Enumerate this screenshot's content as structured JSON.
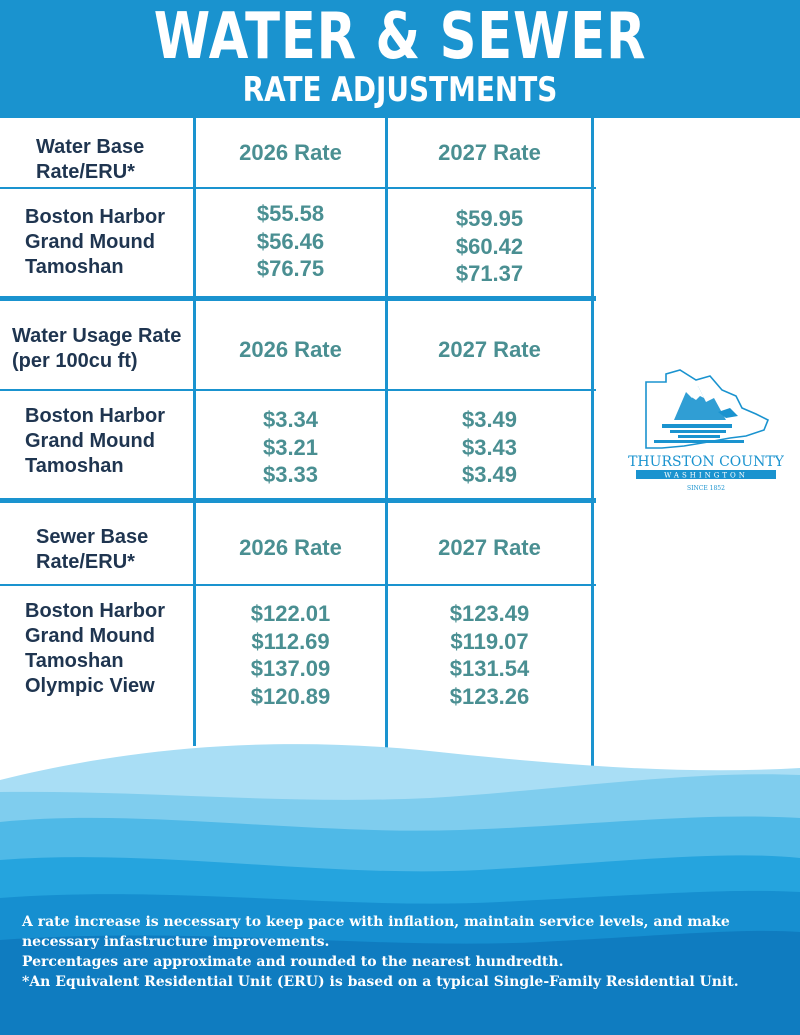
{
  "header": {
    "title": "WATER & SEWER",
    "subtitle": "RATE ADJUSTMENTS"
  },
  "sections": [
    {
      "label": "Water Base Rate/ERU*",
      "label_lines": [
        "Water Base",
        "Rate/ERU*"
      ],
      "col1_header": "2026 Rate",
      "col2_header": "2027 Rate",
      "rows": [
        "Boston Harbor",
        "Grand Mound",
        "Tamoshan"
      ],
      "rate_2026": [
        "$55.58",
        "$56.46",
        "$76.75"
      ],
      "rate_2027": [
        "$59.95",
        "$60.42",
        "$71.37"
      ]
    },
    {
      "label": "Water Usage Rate (per 100cu ft)",
      "label_lines": [
        "Water Usage Rate",
        "(per 100cu ft)"
      ],
      "col1_header": "2026 Rate",
      "col2_header": "2027 Rate",
      "rows": [
        "Boston Harbor",
        "Grand Mound",
        "Tamoshan"
      ],
      "rate_2026": [
        "$3.34",
        "$3.21",
        "$3.33"
      ],
      "rate_2027": [
        "$3.49",
        "$3.43",
        "$3.49"
      ]
    },
    {
      "label": "Sewer Base Rate/ERU*",
      "label_lines": [
        "Sewer Base",
        "Rate/ERU*"
      ],
      "col1_header": "2026 Rate",
      "col2_header": "2027 Rate",
      "rows": [
        "Boston Harbor",
        "Grand Mound",
        "Tamoshan",
        "Olympic View"
      ],
      "rate_2026": [
        "$122.01",
        "$112.69",
        "$137.09",
        "$120.89"
      ],
      "rate_2027": [
        "$123.49",
        "$119.07",
        "$131.54",
        "$123.26"
      ]
    }
  ],
  "logo": {
    "name": "THURSTON COUNTY",
    "state": "WASHINGTON",
    "since": "SINCE 1852"
  },
  "footer": {
    "lines": [
      "A rate increase is necessary to keep pace with inflation, maintain service levels, and make",
      "necessary infastructure improvements.",
      "Percentages are approximate and rounded to the nearest hundredth.",
      "*An Equivalent Residential Unit (ERU) is based on a typical Single-Family Residential Unit."
    ]
  },
  "colors": {
    "header_blue": "#1a93cf",
    "label_navy": "#1f3550",
    "value_teal": "#4a8f92"
  }
}
